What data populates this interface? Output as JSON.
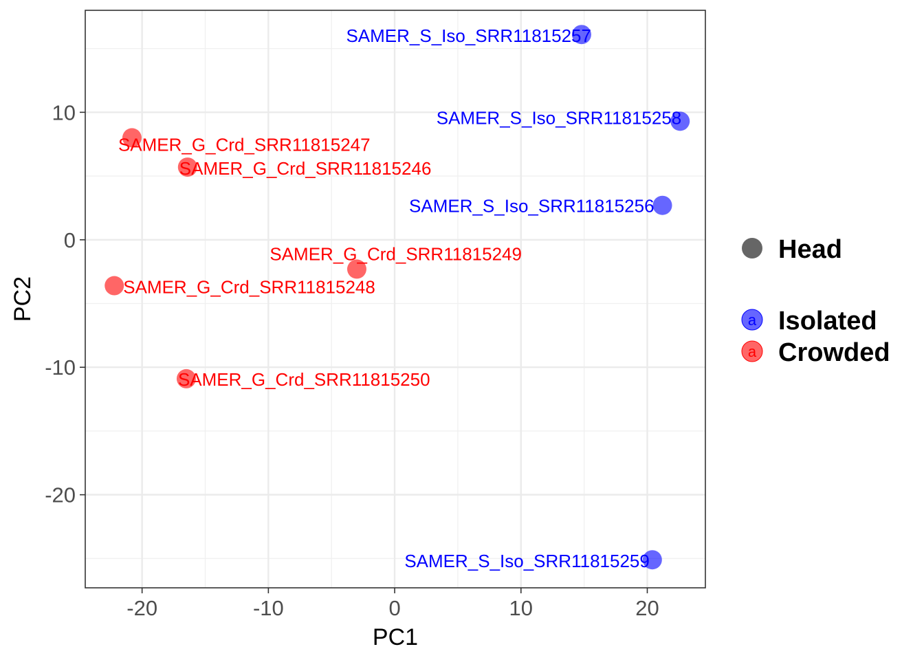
{
  "chart_data": {
    "type": "scatter",
    "title": "",
    "xlabel": "PC1",
    "ylabel": "PC2",
    "xlim": [
      -24.5,
      24.6
    ],
    "ylim": [
      -27.3,
      18.0
    ],
    "xticks": [
      -20,
      -10,
      0,
      10,
      20
    ],
    "yticks": [
      -20,
      -10,
      0,
      10
    ],
    "grid": true,
    "legend_position": "right",
    "legend": {
      "shape_entries": [
        {
          "name": "Head",
          "color": "#666666"
        }
      ],
      "color_entries": [
        {
          "name": "Isolated",
          "color": "#0000FF",
          "glyph": "a"
        },
        {
          "name": "Crowded",
          "color": "#FF0000",
          "glyph": "a"
        }
      ]
    },
    "series": [
      {
        "name": "Isolated",
        "color": "#0000FF",
        "points": [
          {
            "label": "SAMER_S_Iso_SRR11815257",
            "x": 14.8,
            "y": 16.1
          },
          {
            "label": "SAMER_S_Iso_SRR11815258",
            "x": 22.6,
            "y": 9.3
          },
          {
            "label": "SAMER_S_Iso_SRR11815256",
            "x": 21.2,
            "y": 2.7
          },
          {
            "label": "SAMER_S_Iso_SRR11815259",
            "x": 20.4,
            "y": -25.1
          }
        ]
      },
      {
        "name": "Crowded",
        "color": "#FF0000",
        "points": [
          {
            "label": "SAMER_G_Crd_SRR11815247",
            "x": -20.8,
            "y": 8.0
          },
          {
            "label": "SAMER_G_Crd_SRR11815246",
            "x": -16.4,
            "y": 5.7
          },
          {
            "label": "SAMER_G_Crd_SRR11815249",
            "x": -3.0,
            "y": -2.3
          },
          {
            "label": "SAMER_G_Crd_SRR11815248",
            "x": -22.2,
            "y": -3.6
          },
          {
            "label": "SAMER_G_Crd_SRR11815250",
            "x": -16.5,
            "y": -10.9
          }
        ]
      }
    ]
  }
}
